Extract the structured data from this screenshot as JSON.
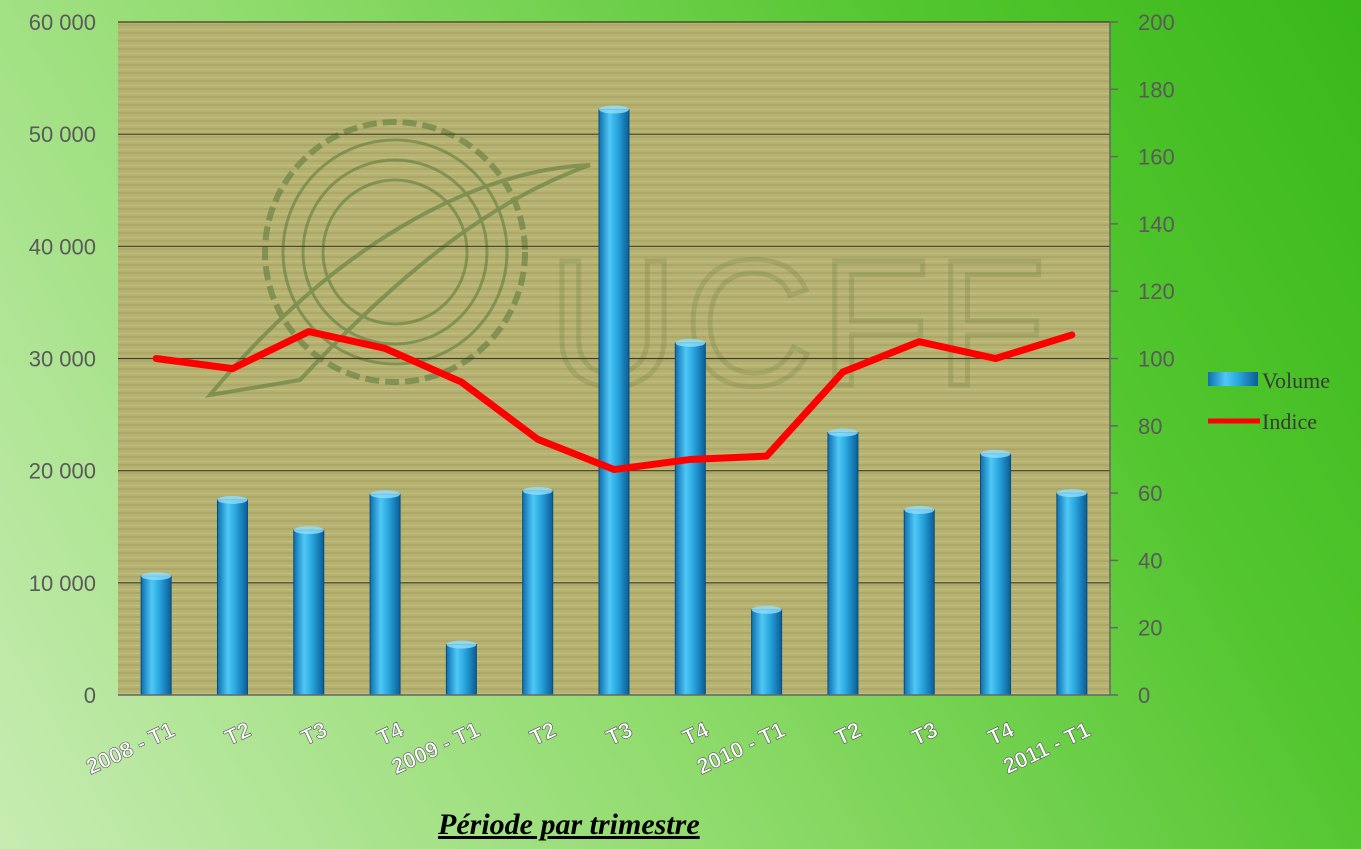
{
  "chart_data": {
    "type": "bar+line",
    "xlabel": "Période par trimestre",
    "categories": [
      "2008 - T1",
      "T2",
      "T3",
      "T4",
      "2009 - T1",
      "T2",
      "T3",
      "T4",
      "2010 - T1",
      "T2",
      "T3",
      "T4",
      "2011 - T1"
    ],
    "series": [
      {
        "name": "Volume",
        "type": "bar",
        "axis": "left",
        "values": [
          10600,
          17400,
          14700,
          17900,
          4500,
          18200,
          52200,
          31400,
          7600,
          23400,
          16500,
          21500,
          18000
        ]
      },
      {
        "name": "Indice",
        "type": "line",
        "axis": "right",
        "values": [
          100,
          97,
          108,
          103,
          93,
          76,
          67,
          70,
          71,
          96,
          105,
          100,
          107
        ]
      }
    ],
    "left_axis": {
      "ylim": [
        0,
        60000
      ],
      "ticks": [
        "0",
        "10 000",
        "20 000",
        "30 000",
        "40 000",
        "50 000",
        "60 000"
      ]
    },
    "right_axis": {
      "ylim": [
        0,
        200
      ],
      "ticks": [
        "0",
        "20",
        "40",
        "60",
        "80",
        "100",
        "120",
        "140",
        "160",
        "180",
        "200"
      ]
    },
    "grid": true,
    "legend_position": "right",
    "colors": {
      "Volume": "#2aa7e0",
      "Indice": "#ff0000"
    },
    "watermark": "UCFF"
  }
}
